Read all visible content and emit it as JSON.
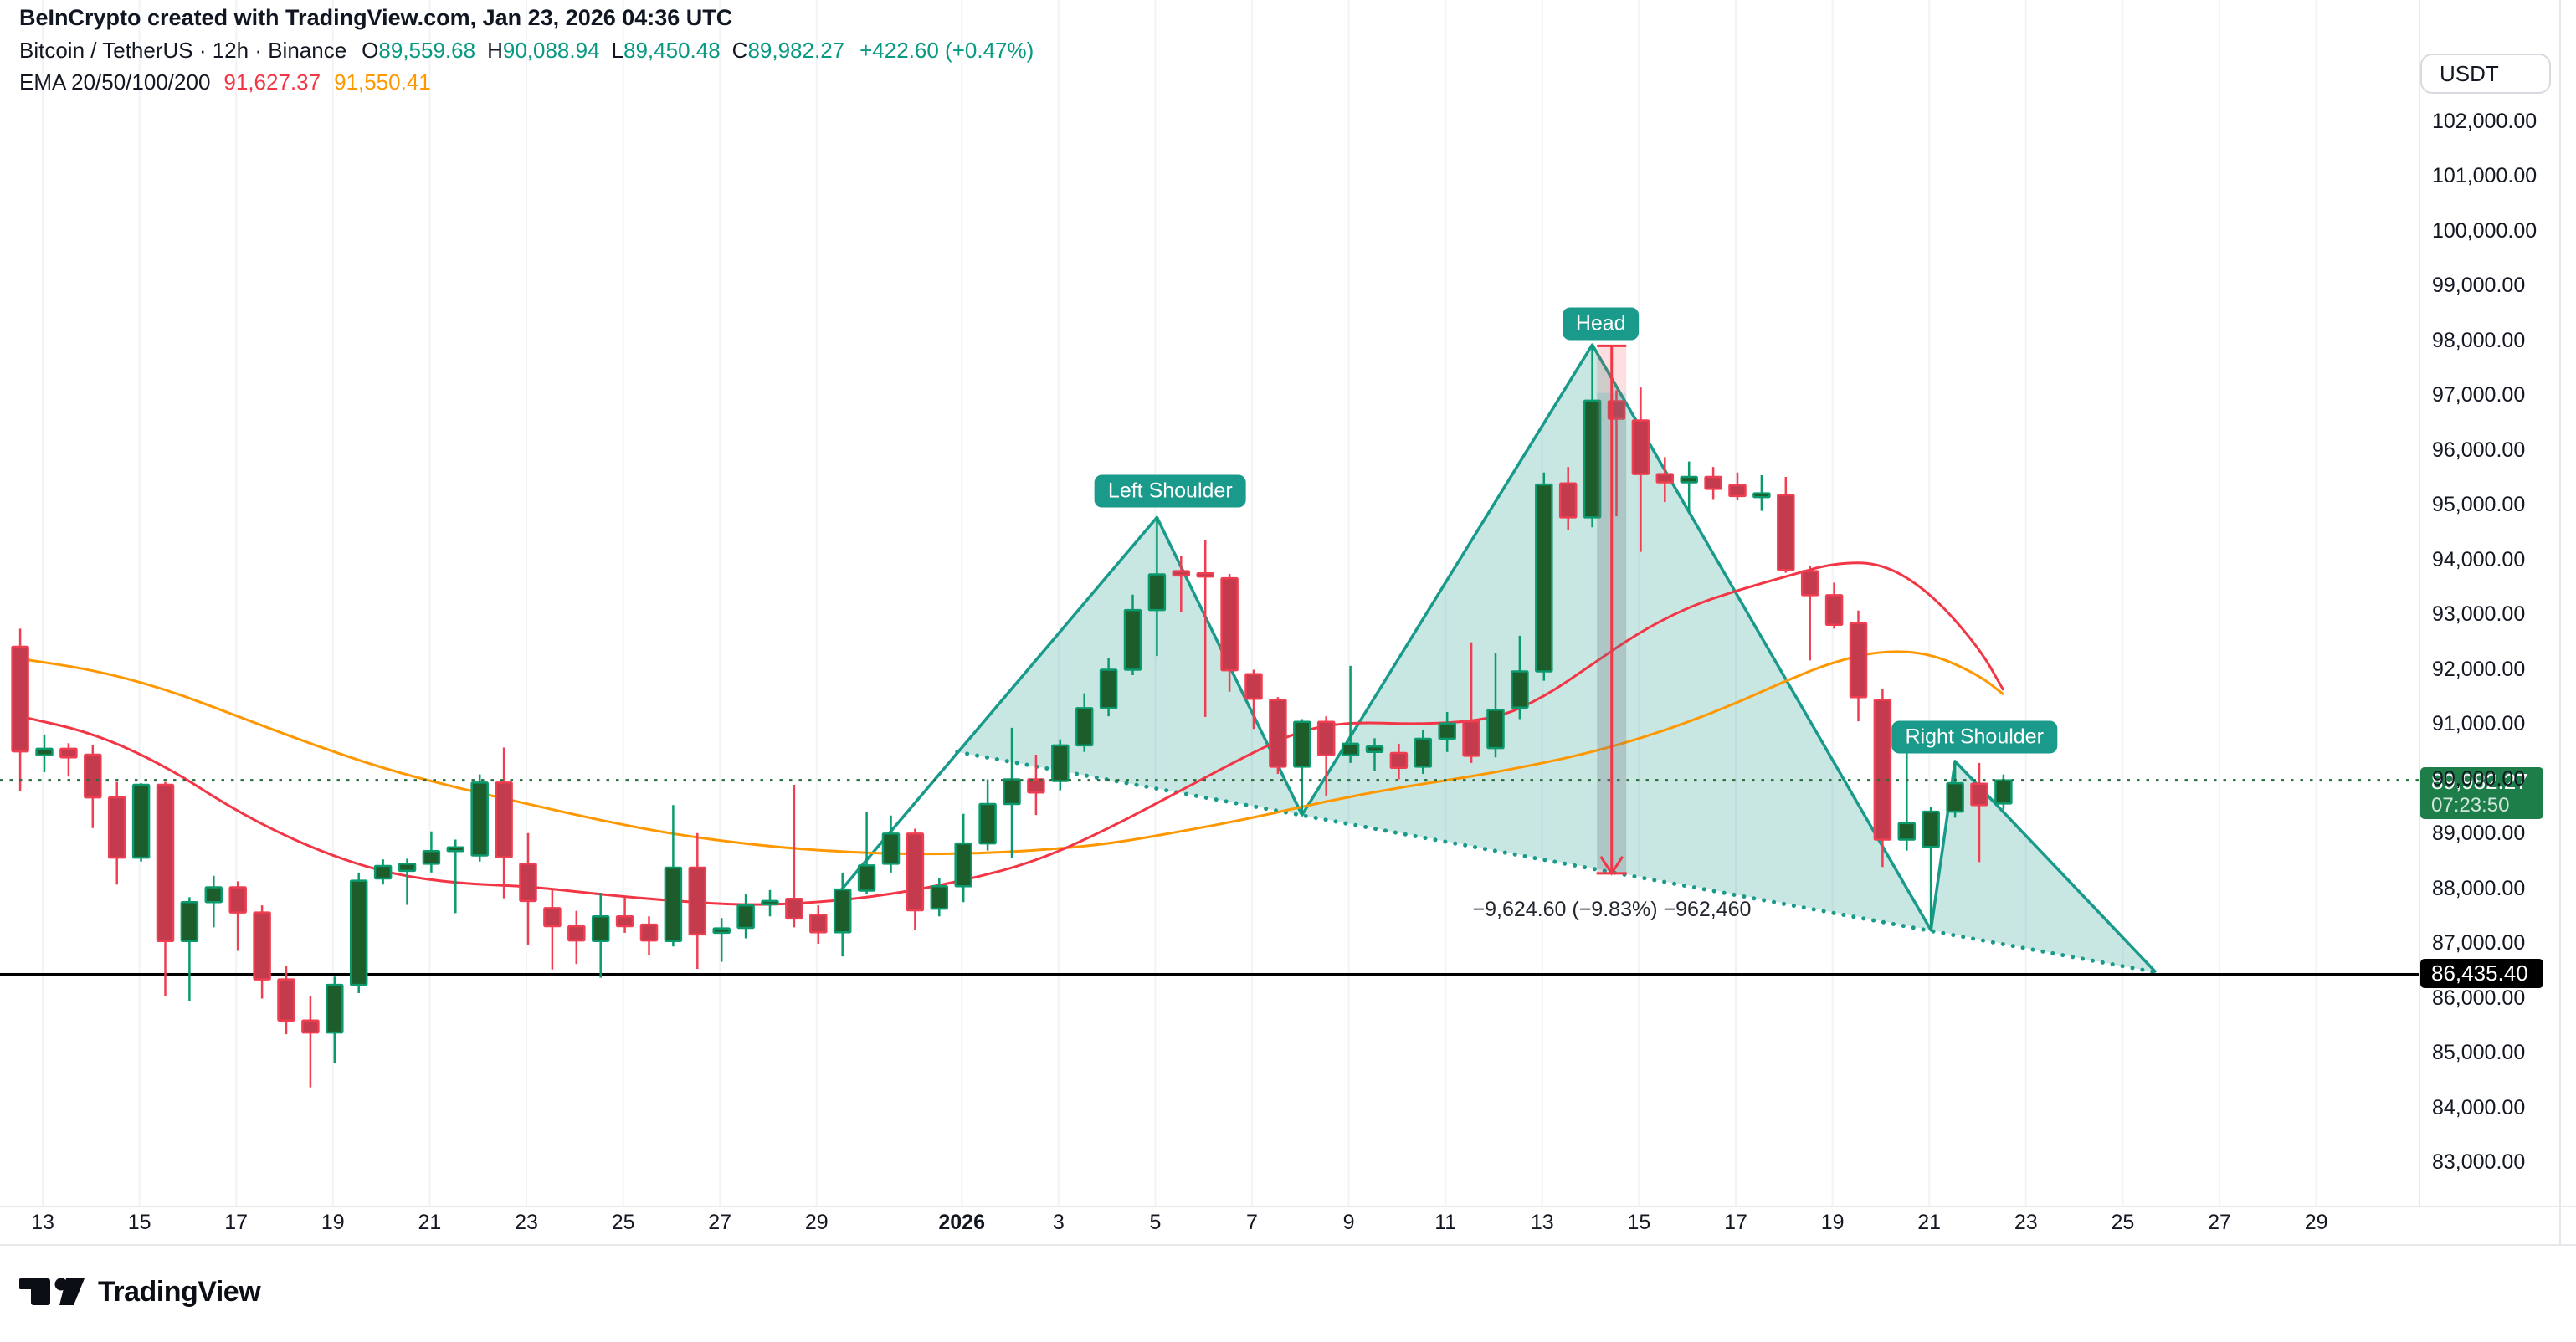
{
  "header": {
    "watermark": "BeInCrypto created with TradingView.com, Jan 23, 2026 04:36 UTC"
  },
  "legend": {
    "symbol": "Bitcoin / TetherUS · 12h · Binance",
    "ohlc": [
      {
        "k": "O",
        "v": "89,559.68"
      },
      {
        "k": "H",
        "v": "90,088.94"
      },
      {
        "k": "L",
        "v": "89,450.48"
      },
      {
        "k": "C",
        "v": "89,982.27"
      }
    ],
    "change": "+422.60 (+0.47%)",
    "ema_label": "EMA 20/50/100/200",
    "ema20_value": "91,627.37",
    "ema50_value": "91,550.41"
  },
  "axis": {
    "currency": "USDT",
    "y_ticks": [
      "102,000.00",
      "101,000.00",
      "100,000.00",
      "99,000.00",
      "98,000.00",
      "97,000.00",
      "96,000.00",
      "95,000.00",
      "94,000.00",
      "93,000.00",
      "92,000.00",
      "91,000.00",
      "90,000.00",
      "89,000.00",
      "88,000.00",
      "87,000.00",
      "86,000.00",
      "85,000.00",
      "84,000.00",
      "83,000.00"
    ],
    "y_tick_prices": [
      102000,
      101000,
      100000,
      99000,
      98000,
      97000,
      96000,
      95000,
      94000,
      93000,
      92000,
      91000,
      90000,
      89000,
      88000,
      87000,
      86000,
      85000,
      84000,
      83000
    ],
    "x_ticks": [
      {
        "label": "13",
        "d": 0
      },
      {
        "label": "15",
        "d": 2
      },
      {
        "label": "17",
        "d": 4
      },
      {
        "label": "19",
        "d": 6
      },
      {
        "label": "21",
        "d": 8
      },
      {
        "label": "23",
        "d": 10
      },
      {
        "label": "25",
        "d": 12
      },
      {
        "label": "27",
        "d": 14
      },
      {
        "label": "29",
        "d": 16
      },
      {
        "label": "2026",
        "d": 19,
        "bold": true
      },
      {
        "label": "3",
        "d": 21
      },
      {
        "label": "5",
        "d": 23
      },
      {
        "label": "7",
        "d": 25
      },
      {
        "label": "9",
        "d": 27
      },
      {
        "label": "11",
        "d": 29
      },
      {
        "label": "13",
        "d": 31
      },
      {
        "label": "15",
        "d": 33
      },
      {
        "label": "17",
        "d": 35
      },
      {
        "label": "19",
        "d": 37
      },
      {
        "label": "21",
        "d": 39
      },
      {
        "label": "23",
        "d": 41
      },
      {
        "label": "25",
        "d": 43
      },
      {
        "label": "27",
        "d": 45
      },
      {
        "label": "29",
        "d": 47
      }
    ]
  },
  "price_labels": {
    "current": {
      "price": "89,982.27",
      "countdown": "07:23:50",
      "value": 89982.27
    },
    "level": {
      "text": "86,435.40",
      "value": 86435.4
    }
  },
  "footer": {
    "brand": "TradingView"
  },
  "chart_data": {
    "type": "candlestick",
    "title": "Bitcoin / TetherUS 12h Binance",
    "interval": "12h",
    "ylabel": "USDT",
    "ylim": [
      82600,
      102600
    ],
    "grid": "vertical-only",
    "current_ohlc": {
      "open": 89559.68,
      "high": 90088.94,
      "low": 89450.48,
      "close": 89982.27,
      "change": 422.6,
      "change_pct": 0.47
    },
    "horizontal_level": 86435.4,
    "current_price_line": 89982.27,
    "candles_columns": [
      "time",
      "open",
      "high",
      "low",
      "close"
    ],
    "candles": [
      [
        "Dec 13 00:00",
        92420,
        92750,
        89790,
        90510
      ],
      [
        "Dec 13 12:00",
        90440,
        90820,
        90130,
        90560
      ],
      [
        "Dec 14 00:00",
        90560,
        90660,
        90050,
        90400
      ],
      [
        "Dec 14 12:00",
        90450,
        90630,
        89110,
        89670
      ],
      [
        "Dec 15 00:00",
        89670,
        89950,
        88080,
        88570
      ],
      [
        "Dec 15 12:00",
        88570,
        89930,
        88500,
        89900
      ],
      [
        "Dec 16 00:00",
        89900,
        89950,
        86050,
        87050
      ],
      [
        "Dec 16 12:00",
        87050,
        87850,
        85950,
        87760
      ],
      [
        "Dec 17 00:00",
        87760,
        88240,
        87300,
        88030
      ],
      [
        "Dec 17 12:00",
        88030,
        88140,
        86870,
        87570
      ],
      [
        "Dec 18 00:00",
        87570,
        87700,
        86000,
        86350
      ],
      [
        "Dec 18 12:00",
        86350,
        86600,
        85350,
        85600
      ],
      [
        "Dec 19 00:00",
        85600,
        86050,
        84380,
        85380
      ],
      [
        "Dec 19 12:00",
        85380,
        86400,
        84830,
        86250
      ],
      [
        "Dec 20 00:00",
        86250,
        88300,
        86100,
        88150
      ],
      [
        "Dec 20 12:00",
        88190,
        88540,
        88080,
        88420
      ],
      [
        "Dec 21 00:00",
        88330,
        88550,
        87710,
        88460
      ],
      [
        "Dec 21 12:00",
        88460,
        89050,
        88300,
        88690
      ],
      [
        "Dec 22 00:00",
        88690,
        88900,
        87560,
        88760
      ],
      [
        "Dec 22 12:00",
        88610,
        90090,
        88500,
        89940
      ],
      [
        "Dec 23 00:00",
        89940,
        90580,
        87830,
        88580
      ],
      [
        "Dec 23 12:00",
        88460,
        89020,
        86980,
        87780
      ],
      [
        "Dec 24 00:00",
        87650,
        88010,
        86530,
        87320
      ],
      [
        "Dec 24 12:00",
        87320,
        87600,
        86630,
        87060
      ],
      [
        "Dec 25 00:00",
        87050,
        87930,
        86380,
        87500
      ],
      [
        "Dec 25 12:00",
        87500,
        87860,
        87200,
        87320
      ],
      [
        "Dec 26 00:00",
        87350,
        87500,
        86800,
        87060
      ],
      [
        "Dec 26 12:00",
        87050,
        89530,
        86950,
        88390
      ],
      [
        "Dec 27 00:00",
        88390,
        89020,
        86540,
        87170
      ],
      [
        "Dec 27 12:00",
        87200,
        87470,
        86670,
        87280
      ],
      [
        "Dec 28 00:00",
        87290,
        87900,
        87100,
        87700
      ],
      [
        "Dec 28 12:00",
        87720,
        87980,
        87500,
        87780
      ],
      [
        "Dec 29 00:00",
        87820,
        89900,
        87300,
        87460
      ],
      [
        "Dec 29 12:00",
        87530,
        87700,
        87000,
        87210
      ],
      [
        "Dec 30 00:00",
        87210,
        88300,
        86770,
        87990
      ],
      [
        "Dec 30 12:00",
        87970,
        89400,
        87900,
        88430
      ],
      [
        "Dec 31 00:00",
        88460,
        89340,
        88300,
        89010
      ],
      [
        "Dec 31 12:00",
        89010,
        89100,
        87260,
        87610
      ],
      [
        "Jan 1 00:00",
        87640,
        88200,
        87500,
        88050
      ],
      [
        "Jan 1 12:00",
        88050,
        89370,
        87760,
        88830
      ],
      [
        "Jan 2 00:00",
        88830,
        90000,
        88700,
        89550
      ],
      [
        "Jan 2 12:00",
        89550,
        90940,
        88570,
        90000
      ],
      [
        "Jan 3 00:00",
        90000,
        90450,
        89350,
        89760
      ],
      [
        "Jan 3 12:00",
        89970,
        90730,
        89800,
        90620
      ],
      [
        "Jan 4 00:00",
        90620,
        91570,
        90500,
        91300
      ],
      [
        "Jan 4 12:00",
        91300,
        92220,
        91150,
        92000
      ],
      [
        "Jan 5 00:00",
        92000,
        93370,
        91900,
        93090
      ],
      [
        "Jan 5 12:00",
        93090,
        94780,
        92250,
        93740
      ],
      [
        "Jan 6 00:00",
        93800,
        94070,
        93050,
        93720
      ],
      [
        "Jan 6 12:00",
        93760,
        94370,
        91140,
        93700
      ],
      [
        "Jan 7 00:00",
        93670,
        93750,
        91600,
        91990
      ],
      [
        "Jan 7 12:00",
        91920,
        92000,
        90920,
        91470
      ],
      [
        "Jan 8 00:00",
        91450,
        91500,
        90100,
        90230
      ],
      [
        "Jan 8 12:00",
        90230,
        91100,
        89350,
        91050
      ],
      [
        "Jan 9 00:00",
        91050,
        91150,
        89700,
        90440
      ],
      [
        "Jan 9 12:00",
        90440,
        92070,
        90300,
        90650
      ],
      [
        "Jan 10 00:00",
        90500,
        90750,
        90150,
        90600
      ],
      [
        "Jan 10 12:00",
        90480,
        90650,
        90000,
        90210
      ],
      [
        "Jan 11 00:00",
        90230,
        90900,
        90100,
        90740
      ],
      [
        "Jan 11 12:00",
        90740,
        91230,
        90500,
        91020
      ],
      [
        "Jan 12 00:00",
        91060,
        92500,
        90300,
        90430
      ],
      [
        "Jan 12 12:00",
        90570,
        92300,
        90400,
        91270
      ],
      [
        "Jan 13 00:00",
        91310,
        92620,
        91100,
        91970
      ],
      [
        "Jan 13 12:00",
        91970,
        95600,
        91800,
        95380
      ],
      [
        "Jan 14 00:00",
        95400,
        95700,
        94550,
        94780
      ],
      [
        "Jan 14 12:00",
        94780,
        97930,
        94600,
        96910
      ],
      [
        "Jan 15 00:00",
        96900,
        97100,
        94800,
        96580
      ],
      [
        "Jan 15 12:00",
        96550,
        97150,
        94150,
        95570
      ],
      [
        "Jan 16 00:00",
        95570,
        95880,
        95060,
        95420
      ],
      [
        "Jan 16 12:00",
        95420,
        95800,
        94880,
        95520
      ],
      [
        "Jan 17 00:00",
        95520,
        95700,
        95100,
        95300
      ],
      [
        "Jan 17 12:00",
        95370,
        95600,
        95090,
        95170
      ],
      [
        "Jan 18 00:00",
        95150,
        95550,
        94900,
        95220
      ],
      [
        "Jan 18 12:00",
        95190,
        95520,
        93770,
        93820
      ],
      [
        "Jan 19 00:00",
        93800,
        93900,
        92170,
        93360
      ],
      [
        "Jan 19 12:00",
        93360,
        93590,
        92750,
        92820
      ],
      [
        "Jan 20 00:00",
        92850,
        93080,
        91060,
        91500
      ],
      [
        "Jan 20 12:00",
        91450,
        91650,
        88400,
        88900
      ],
      [
        "Jan 21 00:00",
        88900,
        90500,
        88700,
        89200
      ],
      [
        "Jan 21 12:00",
        88770,
        89500,
        87250,
        89410
      ],
      [
        "Jan 22 00:00",
        89410,
        90330,
        89300,
        89930
      ],
      [
        "Jan 22 12:00",
        89920,
        90300,
        88490,
        89530
      ],
      [
        "Jan 23 00:00",
        89559.68,
        90088.94,
        89450.48,
        89982.27
      ]
    ],
    "ema_fast_anchors": [
      [
        -1,
        91150
      ],
      [
        2,
        90850
      ],
      [
        5,
        90250
      ],
      [
        8,
        89400
      ],
      [
        11,
        88750
      ],
      [
        14,
        88300
      ],
      [
        17,
        88100
      ],
      [
        20,
        88050
      ],
      [
        23,
        87900
      ],
      [
        26,
        87780
      ],
      [
        29,
        87700
      ],
      [
        32,
        87750
      ],
      [
        35,
        87900
      ],
      [
        38,
        88150
      ],
      [
        41,
        88500
      ],
      [
        44,
        89100
      ],
      [
        47,
        89800
      ],
      [
        50,
        90500
      ],
      [
        52,
        90900
      ],
      [
        54,
        91050
      ],
      [
        57,
        91000
      ],
      [
        60,
        91100
      ],
      [
        62,
        91500
      ],
      [
        64,
        92100
      ],
      [
        66,
        92700
      ],
      [
        68,
        93150
      ],
      [
        70,
        93450
      ],
      [
        72,
        93700
      ],
      [
        74,
        93950
      ],
      [
        76,
        93950
      ],
      [
        78,
        93400
      ],
      [
        80,
        92400
      ],
      [
        81,
        91627
      ]
    ],
    "ema_slow_anchors": [
      [
        -1,
        92200
      ],
      [
        2,
        92000
      ],
      [
        5,
        91650
      ],
      [
        8,
        91150
      ],
      [
        11,
        90650
      ],
      [
        14,
        90200
      ],
      [
        17,
        89850
      ],
      [
        20,
        89550
      ],
      [
        23,
        89250
      ],
      [
        26,
        89000
      ],
      [
        29,
        88820
      ],
      [
        32,
        88700
      ],
      [
        35,
        88640
      ],
      [
        38,
        88640
      ],
      [
        41,
        88700
      ],
      [
        44,
        88820
      ],
      [
        47,
        89050
      ],
      [
        50,
        89300
      ],
      [
        53,
        89600
      ],
      [
        56,
        89850
      ],
      [
        59,
        90050
      ],
      [
        62,
        90300
      ],
      [
        64,
        90500
      ],
      [
        66,
        90750
      ],
      [
        68,
        91050
      ],
      [
        70,
        91400
      ],
      [
        72,
        91800
      ],
      [
        74,
        92150
      ],
      [
        76,
        92350
      ],
      [
        78,
        92300
      ],
      [
        80,
        91900
      ],
      [
        81,
        91550
      ]
    ],
    "pattern": {
      "name": "Head and Shoulders",
      "labels": [
        {
          "text": "Left Shoulder",
          "k": 46.55,
          "y": 587,
          "w": 168
        },
        {
          "text": "Head",
          "k": 64.35,
          "y": 387,
          "w": 80
        },
        {
          "text": "Right Shoulder",
          "k": 79.8,
          "y": 881,
          "w": 174
        }
      ],
      "solid_path_kp": [
        [
          32.77,
          87890
        ],
        [
          46,
          94780
        ],
        [
          52,
          89350
        ],
        [
          64,
          97930
        ],
        [
          78,
          87250
        ],
        [
          79,
          90330
        ],
        [
          87.3,
          86480
        ]
      ],
      "neckline_kp": [
        [
          37.74,
          90500
        ],
        [
          87.3,
          86480
        ]
      ],
      "fill_triangles_kp": [
        [
          [
            37.74,
            90500
          ],
          [
            46,
            94780
          ],
          [
            52,
            89350
          ]
        ],
        [
          [
            52,
            89350
          ],
          [
            64,
            97930
          ],
          [
            78,
            87250
          ]
        ],
        [
          [
            78,
            87250
          ],
          [
            79,
            90330
          ],
          [
            87.3,
            86480
          ]
        ]
      ],
      "measure": {
        "k": 64.8,
        "p_top": 97910,
        "p_split": 97050,
        "p_bottom": 88285,
        "text": "−9,624.60 (−9.83%) −962,460",
        "text_y": 1073
      }
    }
  },
  "colors": {
    "up_body": "#1d5c2b",
    "up_border": "#0a9a6e",
    "down_body": "#c43b4e",
    "down_border": "#ef3e51",
    "pattern": "#199a8b",
    "pattern_fill": "rgba(25,154,139,0.24)",
    "ema_fast": "#f23645",
    "ema_slow": "#ff9800",
    "price_line": "#266b3c",
    "level_line": "#000000",
    "current_label_bg": "#1e7e4a",
    "level_label_bg": "#000000",
    "accent_text": "#089981",
    "text": "#131722",
    "grid": "#f1f3f7",
    "border": "#e6e8ec",
    "measure_red": "#f23645",
    "measure_fill": "rgba(242,54,69,0.16)",
    "measure_gray": "rgba(110,115,125,0.28)"
  }
}
